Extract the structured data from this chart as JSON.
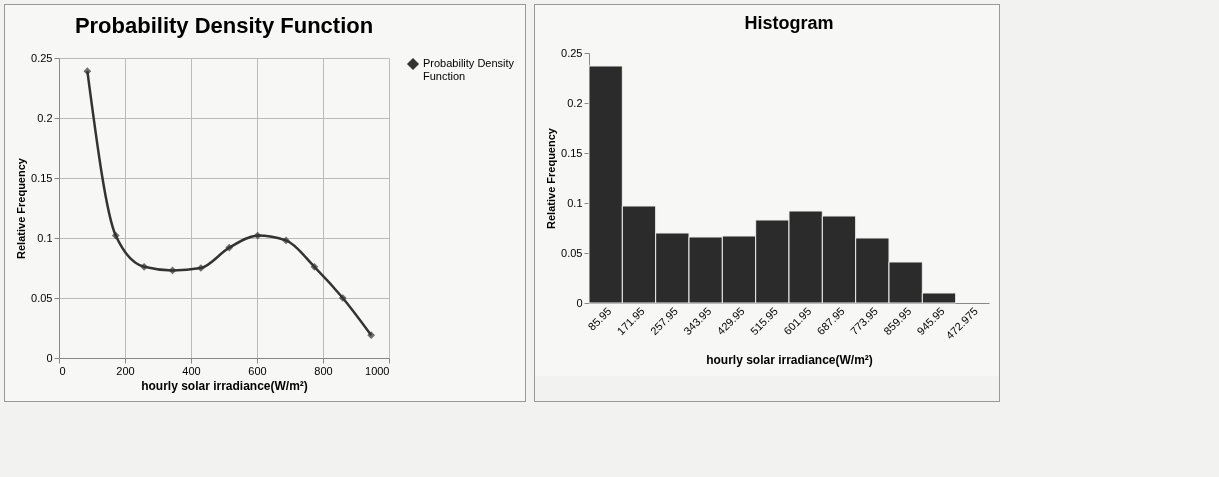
{
  "chart_data": [
    {
      "type": "line",
      "title": "Probability Density Function",
      "xlabel": "hourly solar irradiance(W/m²)",
      "ylabel": "Relative Frequency",
      "x": [
        85.95,
        171.95,
        257.95,
        343.95,
        429.95,
        515.95,
        601.95,
        687.95,
        773.95,
        859.95,
        945.95
      ],
      "series": [
        {
          "name": "Probability Density Function",
          "color": "#333333",
          "values": [
            0.239,
            0.102,
            0.076,
            0.073,
            0.075,
            0.092,
            0.102,
            0.098,
            0.076,
            0.05,
            0.019
          ]
        }
      ],
      "xlim": [
        0,
        1000
      ],
      "xticks": [
        0,
        200,
        400,
        600,
        800,
        1000
      ],
      "ylim": [
        0,
        0.25
      ],
      "yticks": [
        0,
        0.05,
        0.1,
        0.15,
        0.2,
        0.25
      ],
      "grid": true,
      "legend": "right",
      "marker": "diamond"
    },
    {
      "type": "bar",
      "title": "Histogram",
      "xlabel": "hourly solar irradiance(W/m²)",
      "ylabel": "Relative Frequency",
      "categories": [
        "85.95",
        "171.95",
        "257.95",
        "343.95",
        "429.95",
        "515.95",
        "601.95",
        "687.95",
        "773.95",
        "859.95",
        "945.95",
        "472.975"
      ],
      "series": [
        {
          "color": "#2b2b2b",
          "values": [
            0.237,
            0.097,
            0.07,
            0.066,
            0.067,
            0.083,
            0.092,
            0.087,
            0.065,
            0.041,
            0.01,
            null
          ]
        }
      ],
      "ylim": [
        0,
        0.25
      ],
      "yticks": [
        0,
        0.05,
        0.1,
        0.15,
        0.2,
        0.25
      ]
    }
  ]
}
